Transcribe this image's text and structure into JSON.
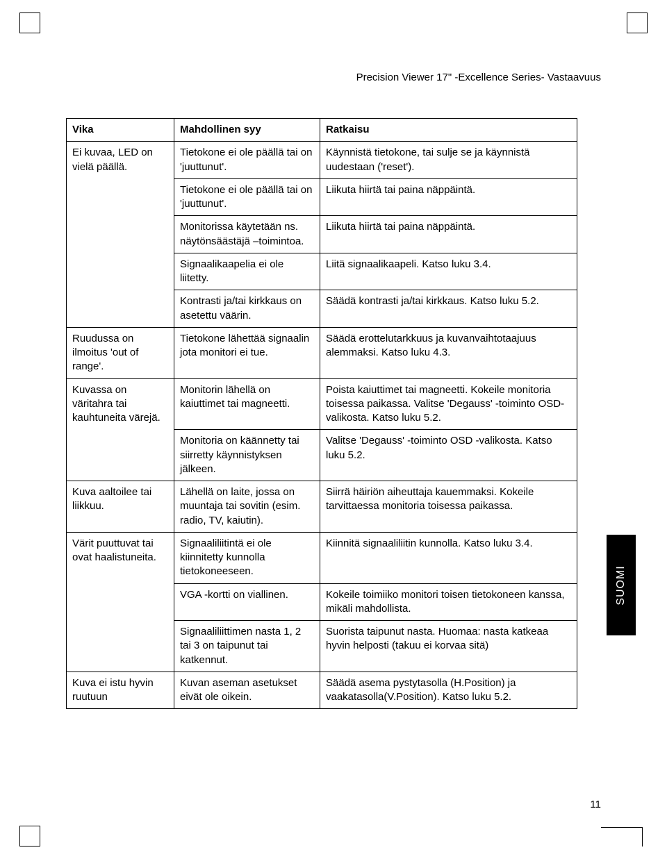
{
  "header": {
    "title": "Precision Viewer 17\" -Excellence Series- Vastaavuus"
  },
  "side_tab": {
    "label": "SUOMI"
  },
  "page_number": "11",
  "table": {
    "headers": {
      "c1": "Vika",
      "c2": "Mahdollinen syy",
      "c3": "Ratkaisu"
    },
    "rows": [
      {
        "c1": "Ei kuvaa, LED on vielä päällä.",
        "c1_rowspan": 5,
        "c2": "Tietokone ei ole päällä tai on 'juuttunut'.",
        "c3": "Käynnistä tietokone, tai sulje se ja käynnistä uudestaan ('reset')."
      },
      {
        "c2": "Tietokone ei ole päällä tai on 'juuttunut'.",
        "c3": "Liikuta hiirtä tai paina näppäintä."
      },
      {
        "c2": "Monitorissa käytetään ns. näytönsäästäjä –toimintoa.",
        "c3": "Liikuta hiirtä tai paina näppäintä."
      },
      {
        "c2": "Signaalikaapelia ei ole liitetty.",
        "c3": "Liitä signaalikaapeli. Katso luku 3.4."
      },
      {
        "c2": "Kontrasti ja/tai kirkkaus on asetettu väärin.",
        "c3": "Säädä kontrasti ja/tai kirkkaus. Katso luku 5.2."
      },
      {
        "c1": "Ruudussa on ilmoitus 'out of range'.",
        "c2": "Tietokone lähettää signaalin jota monitori ei tue.",
        "c3": "Säädä erottelutarkkuus ja kuvanvaihtotaajuus alemmaksi. Katso luku 4.3."
      },
      {
        "c1": "Kuvassa on väritahra tai kauhtuneita värejä.",
        "c1_rowspan": 2,
        "c2": "Monitorin lähellä on kaiuttimet tai magneetti.",
        "c3": "Poista kaiuttimet tai magneetti. Kokeile monitoria toisessa paikassa. Valitse 'Degauss' -toiminto OSD-valikosta. Katso luku 5.2."
      },
      {
        "c2": "Monitoria on käännetty tai siirretty käynnistyksen jälkeen.",
        "c3": "Valitse 'Degauss' -toiminto OSD -valikosta. Katso luku 5.2."
      },
      {
        "c1": "Kuva aaltoilee tai liikkuu.",
        "c2": "Lähellä on laite, jossa on muuntaja tai sovitin (esim. radio, TV, kaiutin).",
        "c3": "Siirrä häiriön aiheuttaja kauemmaksi. Kokeile tarvittaessa monitoria toisessa paikassa."
      },
      {
        "c1": "Värit puuttuvat tai ovat haalistuneita.",
        "c1_rowspan": 3,
        "c2": "Signaaliliitintä ei ole kiinnitetty kunnolla tietokoneeseen.",
        "c3": "Kiinnitä signaaliliitin kunnolla. Katso luku 3.4."
      },
      {
        "c2": "VGA -kortti on viallinen.",
        "c3": "Kokeile toimiiko monitori toisen tietokoneen kanssa, mikäli mahdollista."
      },
      {
        "c2": "Signaaliliittimen nasta 1, 2 tai 3 on taipunut tai katkennut.",
        "c3": "Suorista taipunut nasta. Huomaa: nasta katkeaa hyvin helposti (takuu ei korvaa sitä)"
      },
      {
        "c1": "Kuva ei istu hyvin ruutuun",
        "c2": "Kuvan aseman asetukset eivät ole oikein.",
        "c3": "Säädä asema pystytasolla (H.Position) ja vaakatasolla(V.Position). Katso luku 5.2."
      }
    ]
  }
}
